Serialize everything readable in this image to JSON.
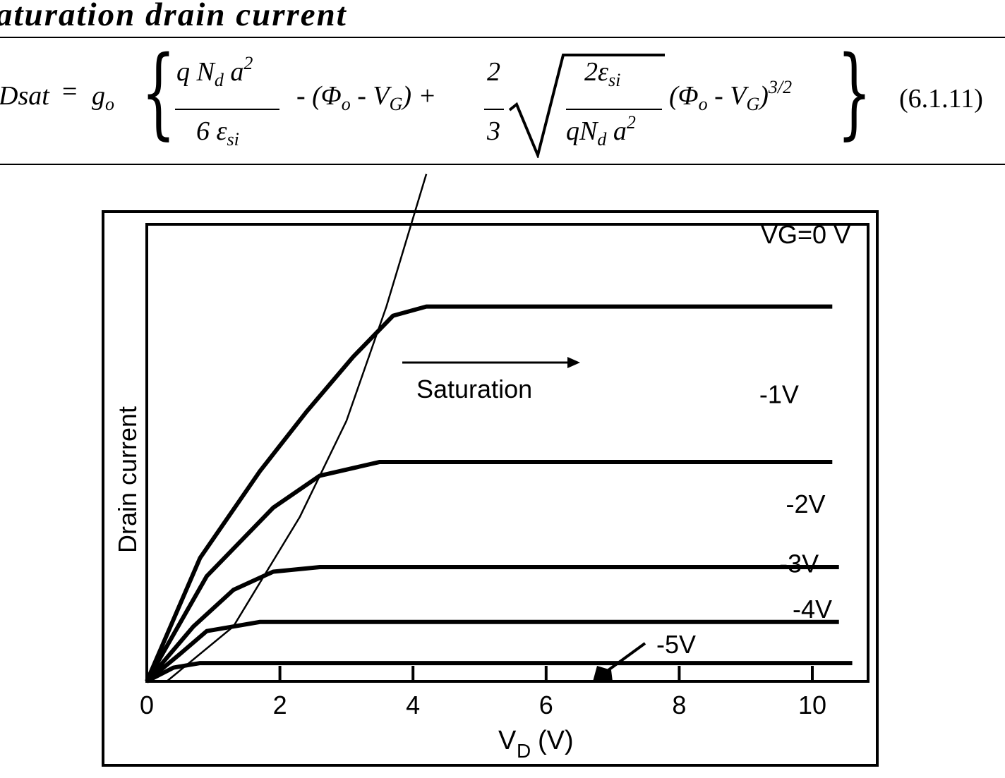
{
  "heading": "aturation drain current",
  "equation": {
    "lhs_main": "Dsat",
    "equals": "=",
    "g": "g",
    "g_sub": "o",
    "brace_open": "{",
    "brace_close": "}",
    "frac1_num_q": "q",
    "frac1_num_N": "N",
    "frac1_num_N_sub": "d",
    "frac1_num_a": "a",
    "frac1_num_a_sup": "2",
    "frac1_den": "6 ε",
    "frac1_den_sub": "si",
    "term2": "- (Φ",
    "term2_sub": "o",
    "term2_b": "- V",
    "term2_b_sub": "G",
    "term2_c": ") +",
    "frac2_num": "2",
    "frac2_den": "3",
    "frac3_num": "2ε",
    "frac3_num_sub": "si",
    "frac3_den_q": "qN",
    "frac3_den_sub": "d",
    "frac3_den_a": "a",
    "frac3_den_sup": "2",
    "term4": "(Φ",
    "term4_sub": "o",
    "term4_b": "- V",
    "term4_b_sub": "G",
    "term4_c": ")",
    "term4_sup": "3/2",
    "number": "(6.1.11)"
  },
  "chart_data": {
    "type": "line",
    "ylabel": "Drain current",
    "xlabel_main": "V",
    "xlabel_sub": "D",
    "xlabel_unit": "(V)",
    "xlim": [
      0,
      10.6
    ],
    "ylim": [
      0,
      1.0
    ],
    "x_ticks": [
      0,
      2,
      4,
      6,
      8,
      10
    ],
    "x_tick_labels": [
      "0",
      "2",
      "4",
      "6",
      "8",
      "10"
    ],
    "series": [
      {
        "name": "VG=0 V",
        "points": [
          [
            0,
            0
          ],
          [
            0.8,
            0.27
          ],
          [
            1.7,
            0.46
          ],
          [
            2.4,
            0.59
          ],
          [
            3.1,
            0.71
          ],
          [
            3.7,
            0.8
          ],
          [
            4.2,
            0.82
          ],
          [
            10.3,
            0.82
          ]
        ]
      },
      {
        "name": "-1V",
        "points": [
          [
            0,
            0
          ],
          [
            0.9,
            0.23
          ],
          [
            1.9,
            0.38
          ],
          [
            2.6,
            0.45
          ],
          [
            3.5,
            0.48
          ],
          [
            10.3,
            0.48
          ]
        ]
      },
      {
        "name": "-2V",
        "points": [
          [
            0,
            0
          ],
          [
            0.7,
            0.12
          ],
          [
            1.3,
            0.2
          ],
          [
            1.9,
            0.24
          ],
          [
            2.6,
            0.25
          ],
          [
            10.4,
            0.25
          ]
        ]
      },
      {
        "name": "-3V",
        "points": [
          [
            0,
            0
          ],
          [
            0.5,
            0.06
          ],
          [
            0.9,
            0.11
          ],
          [
            1.7,
            0.13
          ],
          [
            10.4,
            0.13
          ]
        ]
      },
      {
        "name": "-4V",
        "points": [
          [
            0,
            0
          ],
          [
            0.4,
            0.03
          ],
          [
            0.8,
            0.04
          ],
          [
            10.6,
            0.04
          ]
        ]
      }
    ],
    "saturation_line": [
      [
        0.3,
        0.0
      ],
      [
        1.3,
        0.12
      ],
      [
        2.3,
        0.36
      ],
      [
        3.0,
        0.57
      ],
      [
        3.6,
        0.82
      ],
      [
        4.2,
        1.11
      ]
    ],
    "annotations": {
      "saturation": "Saturation",
      "vg_label_minus5": "-5V"
    }
  }
}
